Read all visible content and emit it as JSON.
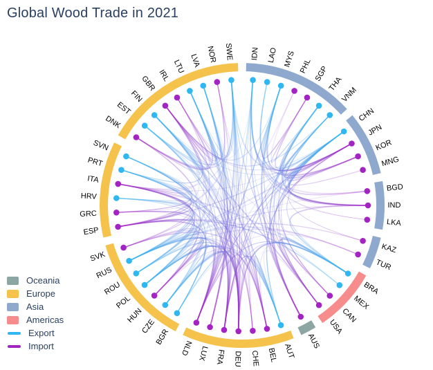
{
  "title": "Global Wood Trade in 2021",
  "legend": {
    "items": [
      {
        "label": "Oceania",
        "swatch": "square",
        "color": "#8ca7a3"
      },
      {
        "label": "Europe",
        "swatch": "square",
        "color": "#f5c34b"
      },
      {
        "label": "Asia",
        "swatch": "square",
        "color": "#8fa9ce"
      },
      {
        "label": "Americas",
        "swatch": "square",
        "color": "#f78c8c"
      },
      {
        "label": "Export",
        "swatch": "line",
        "color": "#2fb7f2"
      },
      {
        "label": "Import",
        "swatch": "line",
        "color": "#a424c3"
      }
    ]
  },
  "chart_data": {
    "type": "chord-network",
    "title": "Global Wood Trade in 2021",
    "legend_position": "bottom-left",
    "role_colors": {
      "Export": "#2fb7f2",
      "Import": "#a424c3"
    },
    "continent_colors": {
      "Oceania": "#8ca7a3",
      "Europe": "#f5c34b",
      "Asia": "#8fa9ce",
      "Americas": "#f78c8c"
    },
    "groups": [
      {
        "continent": "Asia",
        "countries": [
          [
            "IDN",
            "Export"
          ],
          [
            "LAO",
            "Export"
          ],
          [
            "MYS",
            "Export"
          ],
          [
            "PHL",
            "Import"
          ],
          [
            "SGP",
            "Import"
          ],
          [
            "THA",
            "Export"
          ],
          [
            "VNM",
            "Export"
          ]
        ]
      },
      {
        "continent": "Asia",
        "countries": [
          [
            "CHN",
            "Export"
          ],
          [
            "JPN",
            "Import"
          ],
          [
            "KOR",
            "Import"
          ],
          [
            "MNG",
            "Import"
          ]
        ]
      },
      {
        "continent": "Asia",
        "countries": [
          [
            "BGD",
            "Import"
          ],
          [
            "IND",
            "Import"
          ],
          [
            "LKA",
            "Import"
          ]
        ]
      },
      {
        "continent": "Asia",
        "countries": [
          [
            "KAZ",
            "Import"
          ],
          [
            "TUR",
            "Import"
          ]
        ]
      },
      {
        "continent": "Americas",
        "countries": [
          [
            "BRA",
            "Export"
          ],
          [
            "MEX",
            "Export"
          ],
          [
            "CAN",
            "Import"
          ],
          [
            "USA",
            "Import"
          ]
        ]
      },
      {
        "continent": "Oceania",
        "countries": [
          [
            "AUS",
            "Import"
          ]
        ]
      },
      {
        "continent": "Europe",
        "countries": [
          [
            "AUT",
            "Export"
          ],
          [
            "BEL",
            "Import"
          ],
          [
            "CHE",
            "Import"
          ],
          [
            "DEU",
            "Import"
          ],
          [
            "FRA",
            "Import"
          ],
          [
            "LUX",
            "Import"
          ],
          [
            "NLD",
            "Import"
          ]
        ]
      },
      {
        "continent": "Europe",
        "countries": [
          [
            "BGR",
            "Export"
          ],
          [
            "CZE",
            "Export"
          ],
          [
            "HUN",
            "Import"
          ],
          [
            "POL",
            "Export"
          ],
          [
            "ROU",
            "Export"
          ],
          [
            "RUS",
            "Export"
          ],
          [
            "SVK",
            "Import"
          ]
        ]
      },
      {
        "continent": "Europe",
        "countries": [
          [
            "ESP",
            "Import"
          ],
          [
            "GRC",
            "Import"
          ],
          [
            "HRV",
            "Export"
          ],
          [
            "ITA",
            "Import"
          ],
          [
            "PRT",
            "Export"
          ],
          [
            "SVN",
            "Export"
          ]
        ]
      },
      {
        "continent": "Europe",
        "countries": [
          [
            "DNK",
            "Import"
          ],
          [
            "EST",
            "Export"
          ],
          [
            "FIN",
            "Export"
          ],
          [
            "GBR",
            "Import"
          ],
          [
            "IRL",
            "Import"
          ],
          [
            "LTU",
            "Export"
          ],
          [
            "LVA",
            "Export"
          ],
          [
            "NOR",
            "Import"
          ],
          [
            "SWE",
            "Export"
          ]
        ]
      }
    ],
    "edges": {
      "IDN": [
        "JPN",
        "KOR",
        "USA",
        "AUS",
        "IND",
        "NLD",
        "GBR",
        "DEU",
        "BGD",
        "LKA"
      ],
      "LAO": [
        "JPN",
        "KOR",
        "IND"
      ],
      "MYS": [
        "JPN",
        "KOR",
        "USA",
        "AUS",
        "IND",
        "SGP",
        "PHL",
        "NLD",
        "GBR"
      ],
      "THA": [
        "JPN",
        "KOR",
        "USA",
        "AUS",
        "IND",
        "SGP"
      ],
      "VNM": [
        "JPN",
        "KOR",
        "USA",
        "AUS",
        "GBR",
        "IND",
        "DEU",
        "FRA",
        "NLD",
        "CAN"
      ],
      "CHN": [
        "JPN",
        "KOR",
        "USA",
        "AUS",
        "IND",
        "GBR",
        "DEU",
        "NLD",
        "FRA",
        "ITA",
        "ESP",
        "BGD",
        "LKA",
        "MNG",
        "KAZ",
        "CAN",
        "PHL",
        "SGP"
      ],
      "BRA": [
        "USA",
        "DEU",
        "GBR",
        "FRA",
        "ESP",
        "ITA",
        "JPN",
        "IND",
        "CAN",
        "BEL",
        "NLD"
      ],
      "MEX": [
        "USA",
        "CAN",
        "ESP"
      ],
      "AUT": [
        "DEU",
        "ITA",
        "CHE",
        "FRA",
        "HUN",
        "SVK",
        "GBR",
        "BEL",
        "NLD",
        "JPN",
        "USA"
      ],
      "BGR": [
        "GRC",
        "TUR",
        "DEU",
        "ITA",
        "FRA",
        "ESP"
      ],
      "CZE": [
        "DEU",
        "SVK",
        "HUN",
        "ITA",
        "FRA",
        "GBR",
        "BEL",
        "NLD",
        "CHE",
        "LUX",
        "DNK"
      ],
      "POL": [
        "DEU",
        "GBR",
        "FRA",
        "NLD",
        "BEL",
        "ITA",
        "CHE",
        "DNK",
        "NOR",
        "IRL",
        "SVK",
        "HUN",
        "LUX",
        "ESP"
      ],
      "ROU": [
        "HUN",
        "ITA",
        "DEU",
        "FRA",
        "TUR",
        "GRC",
        "ESP"
      ],
      "RUS": [
        "JPN",
        "KOR",
        "KAZ",
        "TUR",
        "DEU",
        "ITA",
        "ESP",
        "IND",
        "BGD",
        "GRC",
        "HUN",
        "FRA",
        "GBR",
        "BEL",
        "NLD",
        "DNK"
      ],
      "HRV": [
        "ITA",
        "DEU",
        "SVK",
        "HUN",
        "GRC",
        "ESP"
      ],
      "PRT": [
        "ESP",
        "FRA",
        "GBR",
        "DEU",
        "NLD",
        "BEL",
        "ITA"
      ],
      "SVN": [
        "ITA",
        "DEU",
        "FRA",
        "HUN",
        "SVK",
        "GRC"
      ],
      "EST": [
        "NOR",
        "DNK",
        "GBR",
        "DEU",
        "NLD",
        "BEL",
        "IRL"
      ],
      "FIN": [
        "DEU",
        "GBR",
        "FRA",
        "NLD",
        "BEL",
        "JPN",
        "USA",
        "ESP",
        "ITA",
        "DNK",
        "IRL",
        "CHE"
      ],
      "LTU": [
        "DEU",
        "GBR",
        "NOR",
        "DNK",
        "NLD",
        "BEL",
        "FRA",
        "IRL",
        "LUX"
      ],
      "LVA": [
        "GBR",
        "DEU",
        "DNK",
        "NOR",
        "NLD",
        "IRL",
        "BEL",
        "FRA",
        "LUX"
      ],
      "SWE": [
        "DEU",
        "GBR",
        "NOR",
        "DNK",
        "FRA",
        "NLD",
        "BEL",
        "ITA",
        "ESP",
        "JPN",
        "USA",
        "IRL",
        "CHE",
        "LUX"
      ]
    }
  }
}
